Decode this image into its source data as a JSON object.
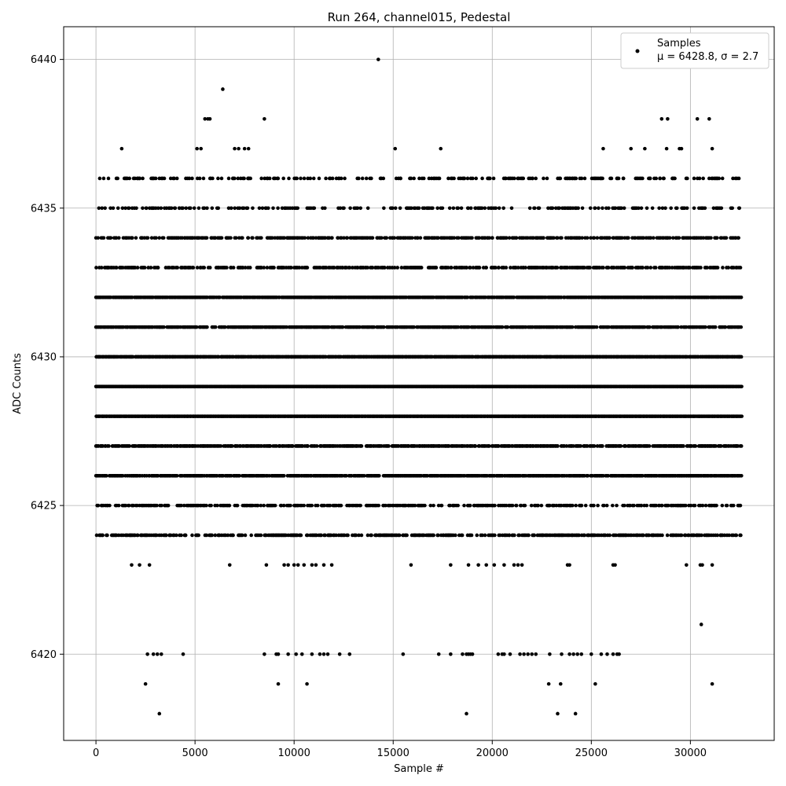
{
  "chart_data": {
    "type": "scatter",
    "title": "Run 264, channel015, Pedestal",
    "xlabel": "Sample #",
    "ylabel": "ADC Counts",
    "xlim": [
      -1630,
      34230
    ],
    "ylim": [
      6417.1,
      6441.1
    ],
    "xticks": [
      0,
      5000,
      10000,
      15000,
      20000,
      25000,
      30000
    ],
    "yticks": [
      6420,
      6425,
      6430,
      6435,
      6440
    ],
    "grid": true,
    "legend_position": "top-right",
    "marker_color": "#000000",
    "series": [
      {
        "name": "Samples",
        "legend_line2": "μ = 6428.8, σ = 2.7",
        "mean": 6428.8,
        "sigma": 2.7,
        "x_range": [
          0,
          32600
        ],
        "dense_levels": [
          {
            "y": 6424,
            "density": 0.55
          },
          {
            "y": 6425,
            "density": 0.5
          },
          {
            "y": 6426,
            "density": 0.85
          },
          {
            "y": 6427,
            "density": 0.75
          },
          {
            "y": 6428,
            "density": 1.0
          },
          {
            "y": 6429,
            "density": 1.0
          },
          {
            "y": 6430,
            "density": 0.95
          },
          {
            "y": 6431,
            "density": 0.8
          },
          {
            "y": 6432,
            "density": 0.9
          },
          {
            "y": 6433,
            "density": 0.55
          },
          {
            "y": 6434,
            "density": 0.55
          },
          {
            "y": 6435,
            "density": 0.3
          },
          {
            "y": 6436,
            "density": 0.32
          }
        ],
        "sparse_points": [
          {
            "x": 14250,
            "y": 6440
          },
          {
            "x": 6400,
            "y": 6439
          },
          {
            "x": 5500,
            "y": 6438
          },
          {
            "x": 5650,
            "y": 6438
          },
          {
            "x": 5750,
            "y": 6438
          },
          {
            "x": 8500,
            "y": 6438
          },
          {
            "x": 28550,
            "y": 6438
          },
          {
            "x": 28850,
            "y": 6438
          },
          {
            "x": 30350,
            "y": 6438
          },
          {
            "x": 30950,
            "y": 6438
          },
          {
            "x": 1300,
            "y": 6437
          },
          {
            "x": 5100,
            "y": 6437
          },
          {
            "x": 5300,
            "y": 6437
          },
          {
            "x": 7000,
            "y": 6437
          },
          {
            "x": 7200,
            "y": 6437
          },
          {
            "x": 7500,
            "y": 6437
          },
          {
            "x": 7700,
            "y": 6437
          },
          {
            "x": 15100,
            "y": 6437
          },
          {
            "x": 17400,
            "y": 6437
          },
          {
            "x": 25600,
            "y": 6437
          },
          {
            "x": 27000,
            "y": 6437
          },
          {
            "x": 27700,
            "y": 6437
          },
          {
            "x": 28800,
            "y": 6437
          },
          {
            "x": 29450,
            "y": 6437
          },
          {
            "x": 29550,
            "y": 6437
          },
          {
            "x": 31100,
            "y": 6437
          },
          {
            "x": 1800,
            "y": 6423
          },
          {
            "x": 2200,
            "y": 6423
          },
          {
            "x": 2700,
            "y": 6423
          },
          {
            "x": 6750,
            "y": 6423
          },
          {
            "x": 8600,
            "y": 6423
          },
          {
            "x": 9500,
            "y": 6423
          },
          {
            "x": 9700,
            "y": 6423
          },
          {
            "x": 10000,
            "y": 6423
          },
          {
            "x": 10200,
            "y": 6423
          },
          {
            "x": 10500,
            "y": 6423
          },
          {
            "x": 10900,
            "y": 6423
          },
          {
            "x": 11100,
            "y": 6423
          },
          {
            "x": 11500,
            "y": 6423
          },
          {
            "x": 11900,
            "y": 6423
          },
          {
            "x": 15900,
            "y": 6423
          },
          {
            "x": 17900,
            "y": 6423
          },
          {
            "x": 18800,
            "y": 6423
          },
          {
            "x": 19300,
            "y": 6423
          },
          {
            "x": 19700,
            "y": 6423
          },
          {
            "x": 20100,
            "y": 6423
          },
          {
            "x": 20600,
            "y": 6423
          },
          {
            "x": 21100,
            "y": 6423
          },
          {
            "x": 21300,
            "y": 6423
          },
          {
            "x": 21500,
            "y": 6423
          },
          {
            "x": 23800,
            "y": 6423
          },
          {
            "x": 23900,
            "y": 6423
          },
          {
            "x": 26100,
            "y": 6423
          },
          {
            "x": 26200,
            "y": 6423
          },
          {
            "x": 29800,
            "y": 6423
          },
          {
            "x": 30500,
            "y": 6423
          },
          {
            "x": 30600,
            "y": 6423
          },
          {
            "x": 31100,
            "y": 6423
          },
          {
            "x": 30550,
            "y": 6421
          },
          {
            "x": 2600,
            "y": 6420
          },
          {
            "x": 2900,
            "y": 6420
          },
          {
            "x": 3100,
            "y": 6420
          },
          {
            "x": 3300,
            "y": 6420
          },
          {
            "x": 4400,
            "y": 6420
          },
          {
            "x": 8500,
            "y": 6420
          },
          {
            "x": 9100,
            "y": 6420
          },
          {
            "x": 9200,
            "y": 6420
          },
          {
            "x": 9700,
            "y": 6420
          },
          {
            "x": 10100,
            "y": 6420
          },
          {
            "x": 10400,
            "y": 6420
          },
          {
            "x": 10900,
            "y": 6420
          },
          {
            "x": 11300,
            "y": 6420
          },
          {
            "x": 11500,
            "y": 6420
          },
          {
            "x": 11700,
            "y": 6420
          },
          {
            "x": 12300,
            "y": 6420
          },
          {
            "x": 12800,
            "y": 6420
          },
          {
            "x": 15500,
            "y": 6420
          },
          {
            "x": 17300,
            "y": 6420
          },
          {
            "x": 17900,
            "y": 6420
          },
          {
            "x": 18500,
            "y": 6420
          },
          {
            "x": 18700,
            "y": 6420
          },
          {
            "x": 18800,
            "y": 6420
          },
          {
            "x": 18900,
            "y": 6420
          },
          {
            "x": 19000,
            "y": 6420
          },
          {
            "x": 20300,
            "y": 6420
          },
          {
            "x": 20500,
            "y": 6420
          },
          {
            "x": 20600,
            "y": 6420
          },
          {
            "x": 20900,
            "y": 6420
          },
          {
            "x": 21400,
            "y": 6420
          },
          {
            "x": 21600,
            "y": 6420
          },
          {
            "x": 21800,
            "y": 6420
          },
          {
            "x": 22000,
            "y": 6420
          },
          {
            "x": 22200,
            "y": 6420
          },
          {
            "x": 22900,
            "y": 6420
          },
          {
            "x": 23500,
            "y": 6420
          },
          {
            "x": 23900,
            "y": 6420
          },
          {
            "x": 24100,
            "y": 6420
          },
          {
            "x": 24300,
            "y": 6420
          },
          {
            "x": 24500,
            "y": 6420
          },
          {
            "x": 25000,
            "y": 6420
          },
          {
            "x": 25500,
            "y": 6420
          },
          {
            "x": 25800,
            "y": 6420
          },
          {
            "x": 26100,
            "y": 6420
          },
          {
            "x": 26300,
            "y": 6420
          },
          {
            "x": 26400,
            "y": 6420
          },
          {
            "x": 2500,
            "y": 6419
          },
          {
            "x": 9200,
            "y": 6419
          },
          {
            "x": 10650,
            "y": 6419
          },
          {
            "x": 22850,
            "y": 6419
          },
          {
            "x": 23450,
            "y": 6419
          },
          {
            "x": 25200,
            "y": 6419
          },
          {
            "x": 31100,
            "y": 6419
          },
          {
            "x": 3200,
            "y": 6418
          },
          {
            "x": 18700,
            "y": 6418
          },
          {
            "x": 23300,
            "y": 6418
          },
          {
            "x": 24200,
            "y": 6418
          }
        ]
      }
    ]
  }
}
